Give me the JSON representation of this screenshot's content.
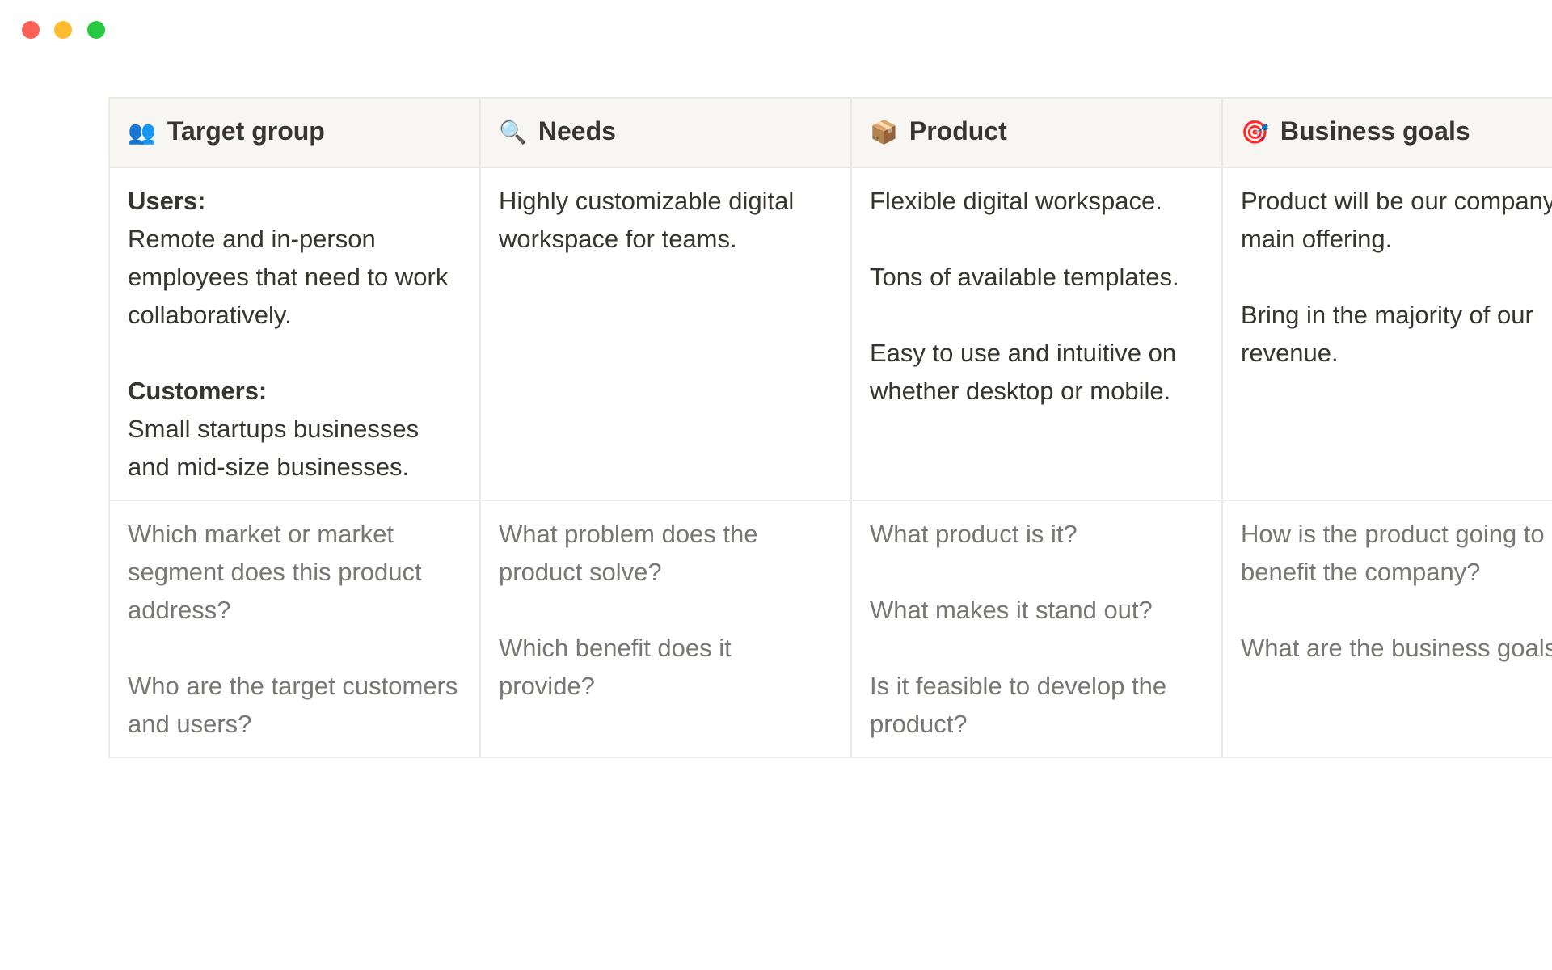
{
  "table": {
    "columns": [
      {
        "icon": "👥",
        "title": "Target group"
      },
      {
        "icon": "🔍",
        "title": "Needs"
      },
      {
        "icon": "📦",
        "title": "Product"
      },
      {
        "icon": "🎯",
        "title": "Business goals"
      }
    ],
    "rows": [
      [
        [
          {
            "label": "Users:",
            "text": "Remote and in-person employees that need to work collaboratively."
          },
          {
            "label": "Customers:",
            "text": "Small startups businesses and mid-size businesses."
          }
        ],
        [
          {
            "text": "Highly customizable digital workspace for teams."
          }
        ],
        [
          {
            "text": "Flexible digital workspace."
          },
          {
            "text": "Tons of available templates."
          },
          {
            "text": "Easy to use and intuitive on whether desktop or mobile."
          }
        ],
        [
          {
            "text": "Product will be our company's main offering."
          },
          {
            "text": "Bring in the majority of our revenue."
          }
        ]
      ],
      [
        [
          {
            "text": "Which market or market segment does this product address?"
          },
          {
            "text": "Who are the target customers and users?"
          }
        ],
        [
          {
            "text": "What problem does the product solve?"
          },
          {
            "text": "Which benefit does it provide?"
          }
        ],
        [
          {
            "text": "What product is it?"
          },
          {
            "text": "What makes it stand out?"
          },
          {
            "text": "Is it feasible to develop the product?"
          }
        ],
        [
          {
            "text": "How is the product going to benefit the company?"
          },
          {
            "text": "What are the business goals?"
          }
        ]
      ]
    ]
  }
}
